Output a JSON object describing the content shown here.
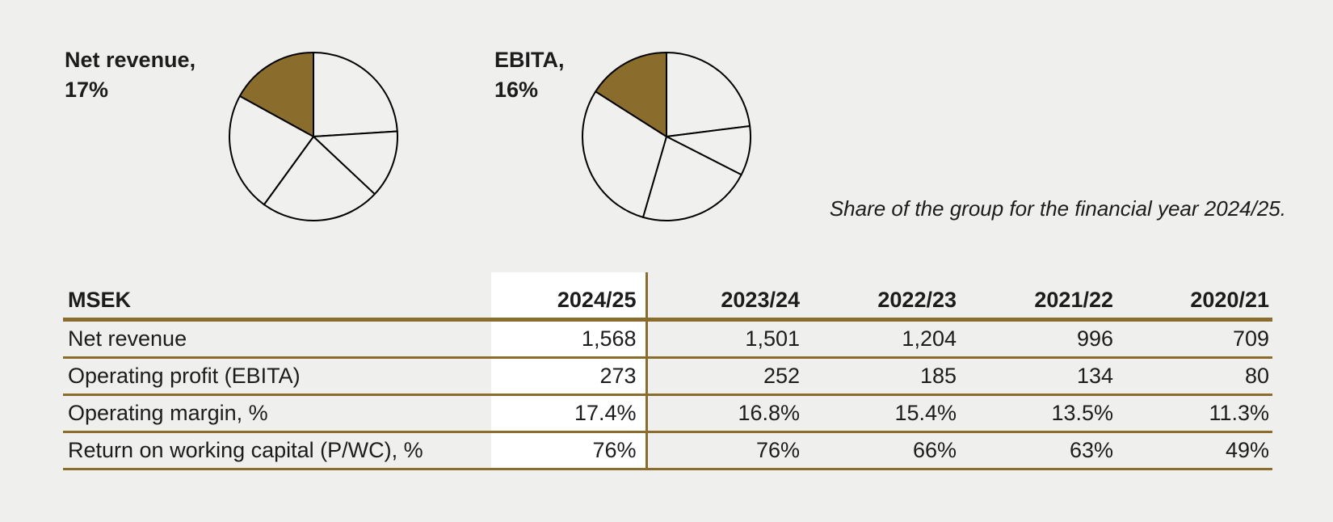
{
  "page": {
    "background": "#efefed",
    "accent_brown": "#8a6c2d",
    "pie_slice_fill": "#f0f0ee",
    "pie_outline": "#000000",
    "text_color": "#1c1c1c"
  },
  "caption": "Share of the group for the financial year 2024/25.",
  "chart_data": [
    {
      "id": "net-revenue-pie",
      "type": "pie",
      "title": "Net revenue, 17%",
      "label_line1": "Net revenue,",
      "label_line2": "17%",
      "slices_pct": [
        24,
        13,
        23,
        23,
        17
      ],
      "highlight_index": 4,
      "highlight_label": "Net revenue",
      "highlight_value_pct": 17,
      "start_angle": "12-oclock",
      "direction": "clockwise",
      "legend": "off"
    },
    {
      "id": "ebita-pie",
      "type": "pie",
      "title": "EBITA, 16%",
      "label_line1": "EBITA,",
      "label_line2": "16%",
      "slices_pct": [
        23,
        9.5,
        22,
        29.5,
        16
      ],
      "highlight_index": 4,
      "highlight_label": "EBITA",
      "highlight_value_pct": 16,
      "start_angle": "12-oclock",
      "direction": "clockwise",
      "legend": "off"
    },
    {
      "id": "five-year-overview-table",
      "type": "table",
      "unit": "MSEK",
      "highlighted_column": "2024/25",
      "columns": [
        "MSEK",
        "2024/25",
        "2023/24",
        "2022/23",
        "2021/22",
        "2020/21"
      ],
      "rows": [
        {
          "label": "Net revenue",
          "values": [
            "1,568",
            "1,501",
            "1,204",
            "996",
            "709"
          ]
        },
        {
          "label": "Operating profit (EBITA)",
          "values": [
            "273",
            "252",
            "185",
            "134",
            "80"
          ]
        },
        {
          "label": "Operating margin, %",
          "values": [
            "17.4%",
            "16.8%",
            "15.4%",
            "13.5%",
            "11.3%"
          ]
        },
        {
          "label": "Return on working capital (P/WC), %",
          "values": [
            "76%",
            "76%",
            "66%",
            "63%",
            "49%"
          ]
        }
      ]
    }
  ]
}
